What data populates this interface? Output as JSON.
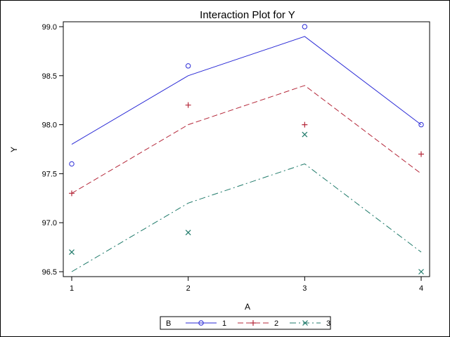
{
  "chart_data": {
    "type": "line",
    "title": "Interaction Plot for Y",
    "xlabel": "A",
    "ylabel": "Y",
    "x": [
      1,
      2,
      3,
      4
    ],
    "xlim": [
      1,
      4
    ],
    "ylim": [
      96.5,
      99.0
    ],
    "yticks": [
      96.5,
      97.0,
      97.5,
      98.0,
      98.5,
      99.0
    ],
    "ytick_labels": [
      "96.5",
      "97.0",
      "97.5",
      "98.0",
      "98.5",
      "99.0"
    ],
    "xtick_labels": [
      "1",
      "2",
      "3",
      "4"
    ],
    "legend_title": "B",
    "legend_position": "bottom",
    "grid": false,
    "series": [
      {
        "name": "1",
        "color": "#2a2ad6",
        "marker": "circle",
        "dash": "solid",
        "fit": [
          97.8,
          98.5,
          98.9,
          98.0
        ],
        "observed": [
          97.6,
          98.6,
          99.0,
          98.0
        ]
      },
      {
        "name": "2",
        "color": "#b5283a",
        "marker": "plus",
        "dash": "dashed",
        "fit": [
          97.3,
          98.0,
          98.4,
          97.5
        ],
        "observed": [
          97.3,
          98.2,
          98.0,
          97.7
        ]
      },
      {
        "name": "3",
        "color": "#1f7a6a",
        "marker": "x",
        "dash": "dashdot",
        "fit": [
          96.5,
          97.2,
          97.6,
          96.7
        ],
        "observed": [
          96.7,
          96.9,
          97.9,
          96.5
        ]
      }
    ]
  }
}
